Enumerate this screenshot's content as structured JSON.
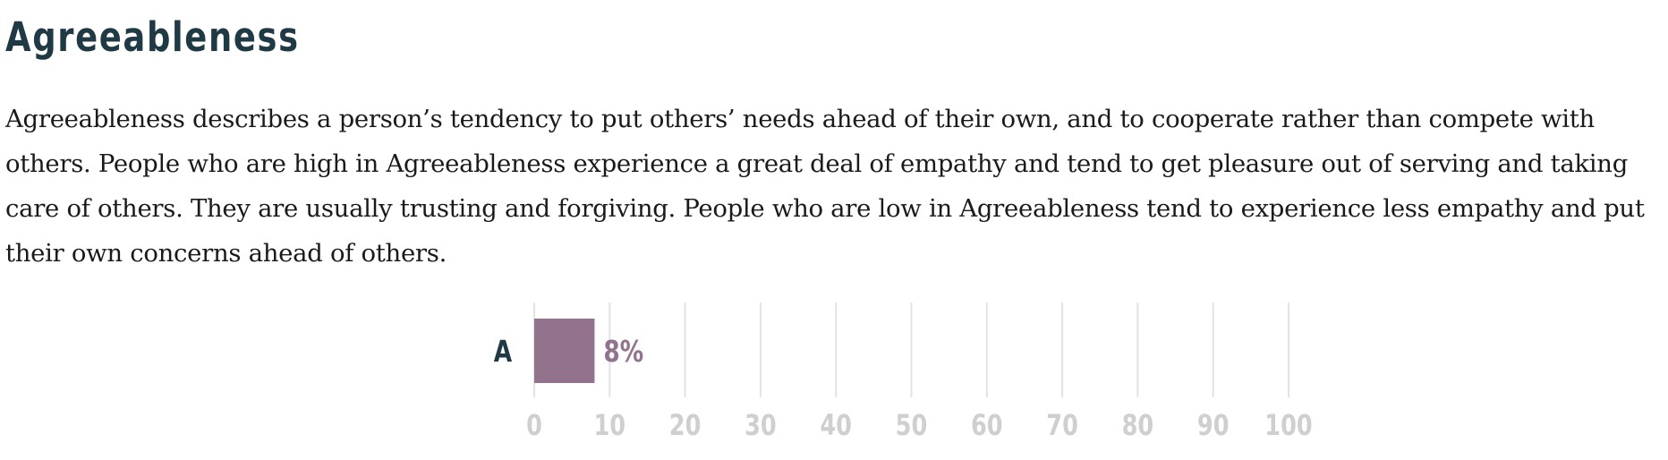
{
  "section": {
    "title": "Agreeableness",
    "description": "Agreeableness describes a person’s tendency to put others’ needs ahead of their own, and to cooperate rather than compete with others. People who are high in Agreeableness experience a great deal of empathy and tend to get pleasure out of serving and taking care of others. They are usually trusting and forgiving. People who are low in Agreeableness tend to experience less empathy and put their own concerns ahead of others."
  },
  "colors": {
    "heading": "#1f3a45",
    "bar": "#93728e",
    "grid": "#e3e3e3",
    "tick": "#cfcfcf"
  },
  "chart_data": {
    "type": "bar",
    "orientation": "horizontal",
    "categories": [
      "A"
    ],
    "values": [
      8
    ],
    "data_labels": [
      "8%"
    ],
    "xlim": [
      0,
      100
    ],
    "xticks": [
      0,
      10,
      20,
      30,
      40,
      50,
      60,
      70,
      80,
      90,
      100
    ],
    "grid": true
  }
}
